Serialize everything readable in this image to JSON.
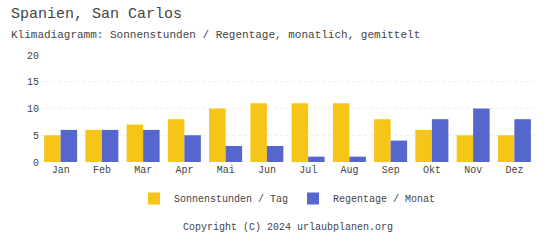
{
  "chart_data": {
    "type": "bar",
    "title": "Spanien, San Carlos",
    "subtitle": "Klimadiagramm: Sonnenstunden / Regentage, monatlich, gemittelt",
    "categories": [
      "Jan",
      "Feb",
      "Mar",
      "Apr",
      "Mai",
      "Jun",
      "Jul",
      "Aug",
      "Sep",
      "Okt",
      "Nov",
      "Dez"
    ],
    "series": [
      {
        "name": "Sonnenstunden / Tag",
        "color": "#F5C518",
        "values": [
          5,
          6,
          7,
          8,
          10,
          11,
          11,
          11,
          8,
          6,
          5,
          5
        ]
      },
      {
        "name": "Regentage / Monat",
        "color": "#5566CC",
        "values": [
          6,
          6,
          6,
          5,
          3,
          3,
          1,
          1,
          4,
          8,
          10,
          8
        ]
      }
    ],
    "ylim": [
      0,
      20
    ],
    "yticks": [
      0,
      5,
      10,
      15,
      20
    ],
    "grid": true,
    "legend": "bottom",
    "annotations": [
      "Copyright (C) 2024 urlaubplanen.org"
    ]
  }
}
